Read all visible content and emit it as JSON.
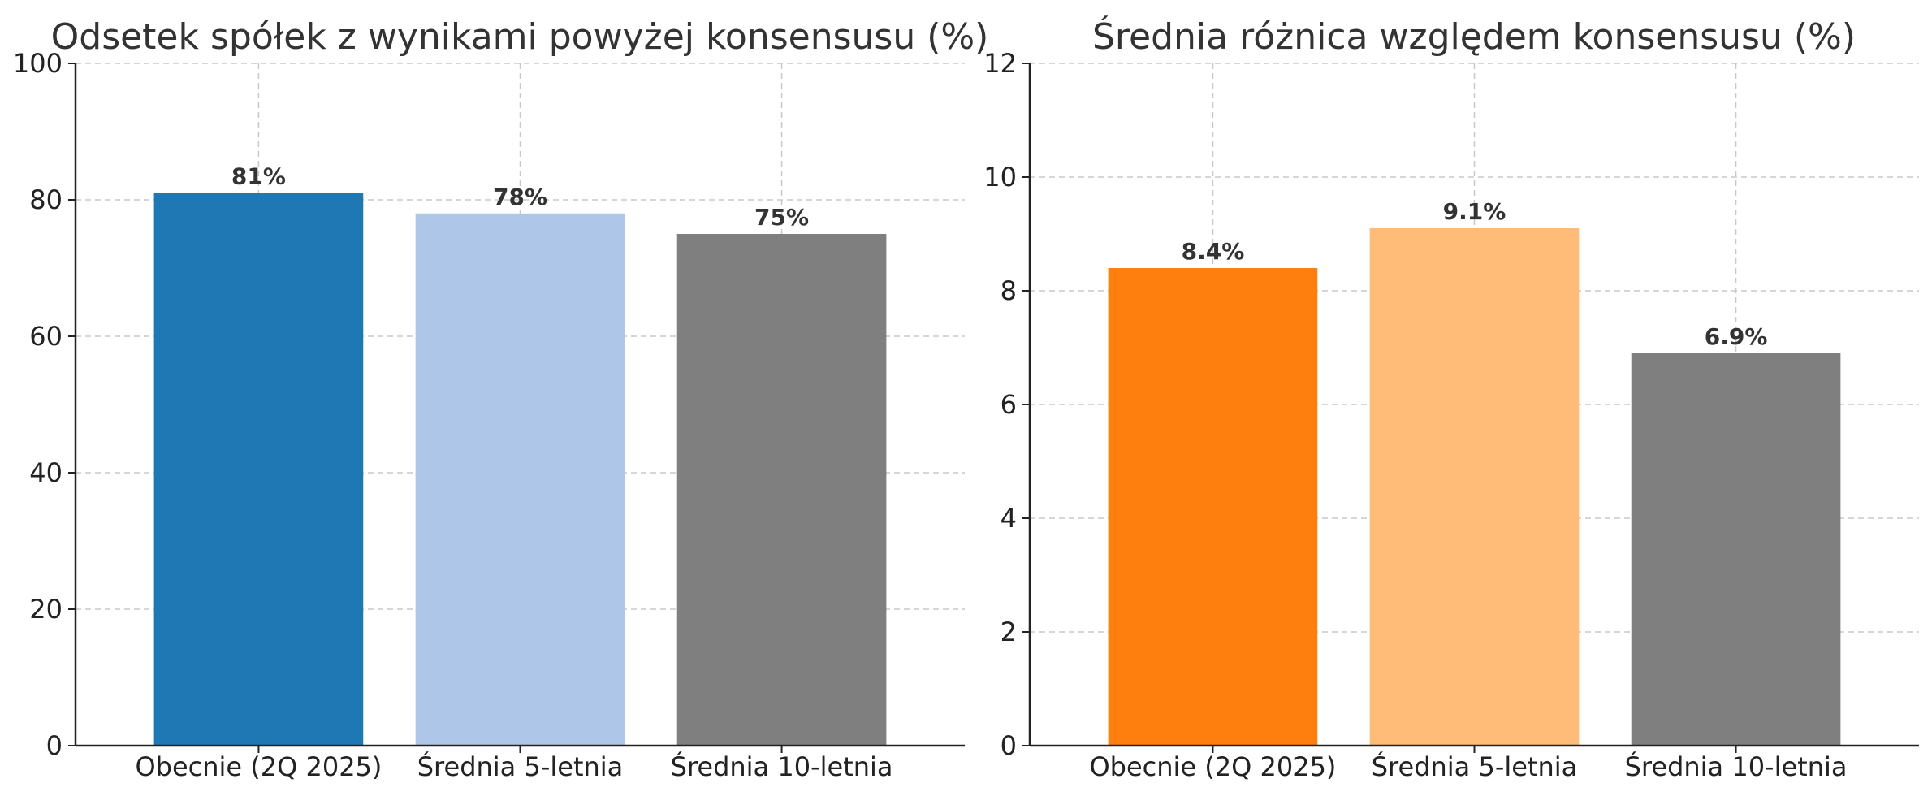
{
  "chart_data": [
    {
      "type": "bar",
      "title": "Odsetek spółek z wynikami powyżej konsensusu (%)",
      "categories": [
        "Obecnie (2Q 2025)",
        "Średnia 5-letnia",
        "Średnia 10-letnia"
      ],
      "values": [
        81,
        78,
        75
      ],
      "data_labels": [
        "81%",
        "78%",
        "75%"
      ],
      "colors": [
        "#1f77b4",
        "#aec7e8",
        "#7f7f7f"
      ],
      "ylim": [
        0,
        100
      ],
      "yticks": [
        0,
        20,
        40,
        60,
        80,
        100
      ],
      "grid": true
    },
    {
      "type": "bar",
      "title": "Średnia różnica względem konsensusu (%)",
      "categories": [
        "Obecnie (2Q 2025)",
        "Średnia 5-letnia",
        "Średnia 10-letnia"
      ],
      "values": [
        8.4,
        9.1,
        6.9
      ],
      "data_labels": [
        "8.4%",
        "9.1%",
        "6.9%"
      ],
      "colors": [
        "#ff7f0e",
        "#ffbb78",
        "#7f7f7f"
      ],
      "ylim": [
        0,
        12
      ],
      "yticks": [
        0,
        2,
        4,
        6,
        8,
        10,
        12
      ],
      "grid": true
    }
  ]
}
